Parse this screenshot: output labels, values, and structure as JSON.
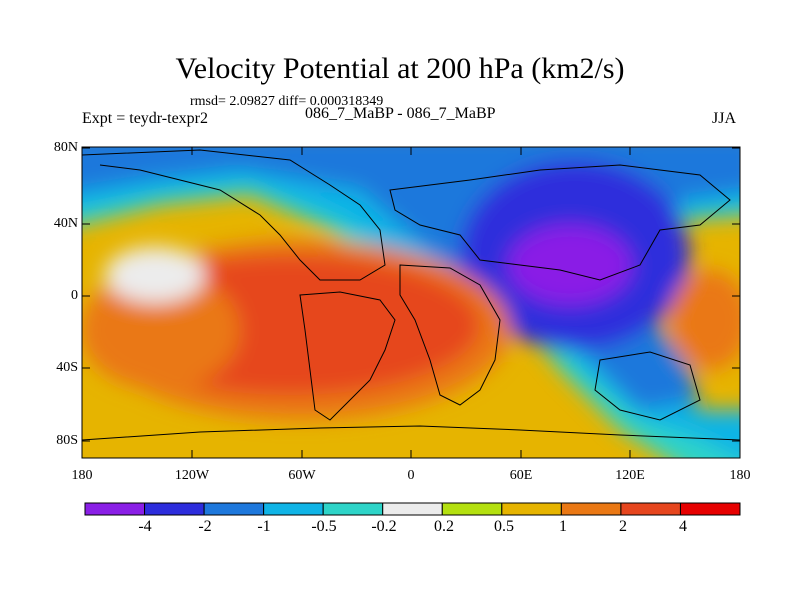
{
  "title": "Velocity Potential at 200 hPa (km2/s)",
  "stats": "rmsd= 2.09827 diff= 0.000318349",
  "experiment": "Expt = teydr-texpr2",
  "subtitle": "086_7_MaBP - 086_7_MaBP",
  "season": "JJA",
  "y_ticks": [
    "80N",
    "40N",
    "0",
    "40S",
    "80S"
  ],
  "x_ticks": [
    "180",
    "120W",
    "60W",
    "0",
    "60E",
    "120E",
    "180"
  ],
  "colorbar": {
    "labels": [
      "-4",
      "-2",
      "-1",
      "-0.5",
      "-0.2",
      "0.2",
      "0.5",
      "1",
      "2",
      "4"
    ],
    "colors": [
      "#8a1fe6",
      "#2d2ddc",
      "#1e78dc",
      "#10b4e6",
      "#2ed4c8",
      "#ececec",
      "#b4e010",
      "#e6b400",
      "#ea7814",
      "#e6461e",
      "#e60000"
    ]
  }
}
